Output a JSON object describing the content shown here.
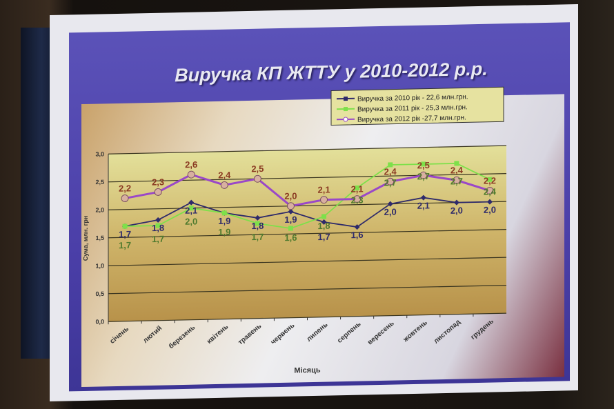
{
  "slide_title": "Виручка КП ЖТТУ у 2010-2012 р.р.",
  "chart_data": {
    "type": "line",
    "title": "Виручка КП ЖТТУ у 2010-2012 р.р.",
    "xlabel": "Місяць",
    "ylabel": "Сума, млн. грн",
    "ylim": [
      0,
      3.0
    ],
    "yticks": [
      "0,0",
      "0,5",
      "1,0",
      "1,5",
      "2,0",
      "2,5",
      "3,0"
    ],
    "grid": true,
    "legend_position": "top-right",
    "categories": [
      "січень",
      "лютий",
      "березень",
      "квітень",
      "травень",
      "червень",
      "липень",
      "серпень",
      "вересень",
      "жовтень",
      "листопад",
      "грудень"
    ],
    "series": [
      {
        "name": "Виручка за 2010 рік - 22,6 млн.грн.",
        "color": "#2e2a6a",
        "marker": "diamond",
        "label_color": "#2e2a6a",
        "values": [
          1.7,
          1.8,
          2.1,
          1.9,
          1.8,
          1.9,
          1.7,
          1.6,
          2.0,
          2.1,
          2.0,
          2.0
        ]
      },
      {
        "name": "Виручка за 2011 рік - 25,3 млн.грн.",
        "color": "#7ee04a",
        "marker": "square",
        "label_color": "#4f7a2e",
        "values": [
          1.7,
          1.7,
          2.0,
          1.9,
          1.7,
          1.6,
          1.8,
          2.3,
          2.7,
          2.7,
          2.7,
          2.4
        ]
      },
      {
        "name": "Виручка за 2012 рік -27,7 млн.грн.",
        "color": "#9a48c8",
        "marker": "circle",
        "label_color": "#8a3a22",
        "values": [
          2.2,
          2.3,
          2.6,
          2.4,
          2.5,
          2.0,
          2.1,
          2.1,
          2.4,
          2.5,
          2.4,
          2.2
        ]
      }
    ]
  }
}
